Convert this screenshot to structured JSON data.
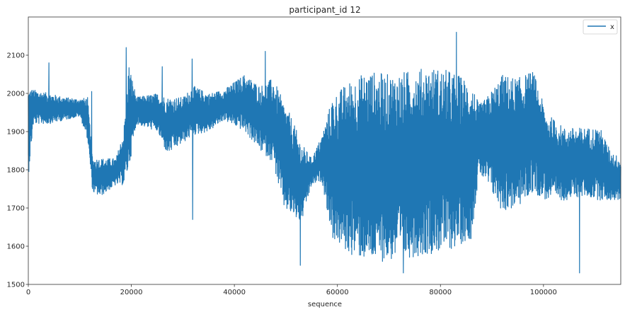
{
  "chart_data": {
    "type": "line",
    "title": "participant_id 12",
    "xlabel": "sequence",
    "ylabel": "",
    "xlim": [
      0,
      115000
    ],
    "ylim": [
      1500,
      2200
    ],
    "x_ticks": [
      0,
      20000,
      40000,
      60000,
      80000,
      100000
    ],
    "x_tick_labels": [
      "0",
      "20000",
      "40000",
      "60000",
      "80000",
      "100000"
    ],
    "y_ticks": [
      1500,
      1600,
      1700,
      1800,
      1900,
      2000,
      2100
    ],
    "y_tick_labels": [
      "1500",
      "1600",
      "1700",
      "1800",
      "1900",
      "2000",
      "2100"
    ],
    "legend_position": "top-right",
    "grid": false,
    "series": [
      {
        "name": "x",
        "color": "#1f77b4",
        "envelope": {
          "x": [
            0,
            1000,
            4000,
            7000,
            10000,
            11500,
            12500,
            14000,
            17000,
            18500,
            19500,
            21000,
            25000,
            27000,
            30000,
            32000,
            35000,
            38000,
            42000,
            45000,
            47500,
            49500,
            51000,
            53000,
            55000,
            57000,
            59000,
            62000,
            66000,
            70000,
            74000,
            78000,
            82000,
            86000,
            87500,
            89000,
            92000,
            95000,
            98000,
            100500,
            104000,
            108000,
            111000,
            113000,
            115000
          ],
          "low": [
            1780,
            1920,
            1920,
            1930,
            1940,
            1880,
            1740,
            1730,
            1760,
            1760,
            1800,
            1920,
            1900,
            1840,
            1870,
            1890,
            1900,
            1930,
            1900,
            1850,
            1820,
            1700,
            1680,
            1660,
            1760,
            1770,
            1620,
            1580,
            1560,
            1560,
            1570,
            1580,
            1590,
            1620,
            1790,
            1760,
            1690,
            1700,
            1740,
            1720,
            1720,
            1730,
            1720,
            1720,
            1720
          ],
          "high": [
            2020,
            2010,
            2000,
            1990,
            1985,
            1990,
            1830,
            1830,
            1830,
            1900,
            2080,
            1990,
            2000,
            1990,
            1990,
            2020,
            2000,
            2010,
            2050,
            2020,
            2040,
            1980,
            1940,
            1870,
            1830,
            1890,
            1990,
            2030,
            2060,
            2050,
            2060,
            2070,
            2060,
            2030,
            1970,
            1990,
            2050,
            2040,
            2060,
            1950,
            1910,
            1910,
            1910,
            1850,
            1830
          ]
        },
        "spikes": [
          {
            "x": 4000,
            "y": 2080
          },
          {
            "x": 12300,
            "y": 2005
          },
          {
            "x": 19000,
            "y": 2120
          },
          {
            "x": 26000,
            "y": 2070
          },
          {
            "x": 31800,
            "y": 2090
          },
          {
            "x": 31900,
            "y": 1670
          },
          {
            "x": 46000,
            "y": 2110
          },
          {
            "x": 52800,
            "y": 1550
          },
          {
            "x": 72800,
            "y": 1530
          },
          {
            "x": 83100,
            "y": 2160
          },
          {
            "x": 107000,
            "y": 1530
          }
        ]
      }
    ]
  }
}
